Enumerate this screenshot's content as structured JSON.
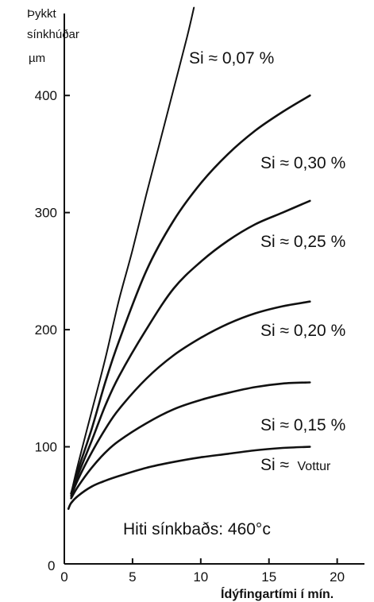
{
  "chart_data": {
    "type": "line",
    "ylabel_lines": [
      "Þykkt",
      "sínkhúðar",
      "µm"
    ],
    "xlabel": "Ídýfingartími í mín.",
    "annotation": "Hiti sínkbaðs: 460°c",
    "xlim": [
      0,
      22
    ],
    "ylim": [
      0,
      470
    ],
    "xticks": [
      0,
      5,
      10,
      15,
      20
    ],
    "yticks": [
      100,
      200,
      300,
      400
    ],
    "ytick_labels": [
      "100",
      "200",
      "300",
      "400"
    ],
    "zero_label": "0",
    "grid": false,
    "series": [
      {
        "name": "Si ≈ 0,07 %",
        "points": [
          [
            0.5,
            60
          ],
          [
            1,
            85
          ],
          [
            2,
            130
          ],
          [
            3,
            175
          ],
          [
            4,
            225
          ],
          [
            5,
            268
          ],
          [
            6,
            315
          ],
          [
            7,
            360
          ],
          [
            8,
            405
          ],
          [
            9,
            450
          ],
          [
            9.5,
            475
          ]
        ]
      },
      {
        "name": "Si ≈ 0,30 %",
        "points": [
          [
            0.5,
            60
          ],
          [
            1,
            80
          ],
          [
            2,
            115
          ],
          [
            3,
            155
          ],
          [
            4,
            190
          ],
          [
            6,
            250
          ],
          [
            8,
            293
          ],
          [
            10,
            325
          ],
          [
            12,
            350
          ],
          [
            14,
            370
          ],
          [
            16,
            386
          ],
          [
            18,
            400
          ]
        ]
      },
      {
        "name": "Si ≈ 0,25 %",
        "points": [
          [
            0.5,
            60
          ],
          [
            1,
            76
          ],
          [
            2,
            105
          ],
          [
            3,
            135
          ],
          [
            4,
            160
          ],
          [
            6,
            200
          ],
          [
            8,
            235
          ],
          [
            10,
            258
          ],
          [
            12,
            276
          ],
          [
            14,
            290
          ],
          [
            16,
            300
          ],
          [
            18,
            310
          ]
        ]
      },
      {
        "name": "Si ≈ 0,20 %",
        "points": [
          [
            0.5,
            58
          ],
          [
            1,
            72
          ],
          [
            2,
            95
          ],
          [
            3,
            115
          ],
          [
            4,
            132
          ],
          [
            6,
            158
          ],
          [
            8,
            178
          ],
          [
            10,
            193
          ],
          [
            12,
            205
          ],
          [
            14,
            214
          ],
          [
            16,
            220
          ],
          [
            18,
            224
          ]
        ]
      },
      {
        "name": "Si ≈ 0,15 %",
        "points": [
          [
            0.5,
            56
          ],
          [
            1,
            66
          ],
          [
            2,
            82
          ],
          [
            3,
            95
          ],
          [
            4,
            105
          ],
          [
            6,
            120
          ],
          [
            8,
            132
          ],
          [
            10,
            140
          ],
          [
            12,
            146
          ],
          [
            14,
            151
          ],
          [
            16,
            154
          ],
          [
            18,
            155
          ]
        ]
      },
      {
        "name_prefix": "Si ≈",
        "name_suffix": "Vottur",
        "points": [
          [
            0.3,
            47
          ],
          [
            0.5,
            52
          ],
          [
            1,
            58
          ],
          [
            2,
            66
          ],
          [
            3,
            71
          ],
          [
            4,
            75
          ],
          [
            6,
            82
          ],
          [
            8,
            87
          ],
          [
            10,
            91
          ],
          [
            12,
            94
          ],
          [
            14,
            97
          ],
          [
            16,
            99
          ],
          [
            18,
            100
          ]
        ]
      }
    ]
  }
}
